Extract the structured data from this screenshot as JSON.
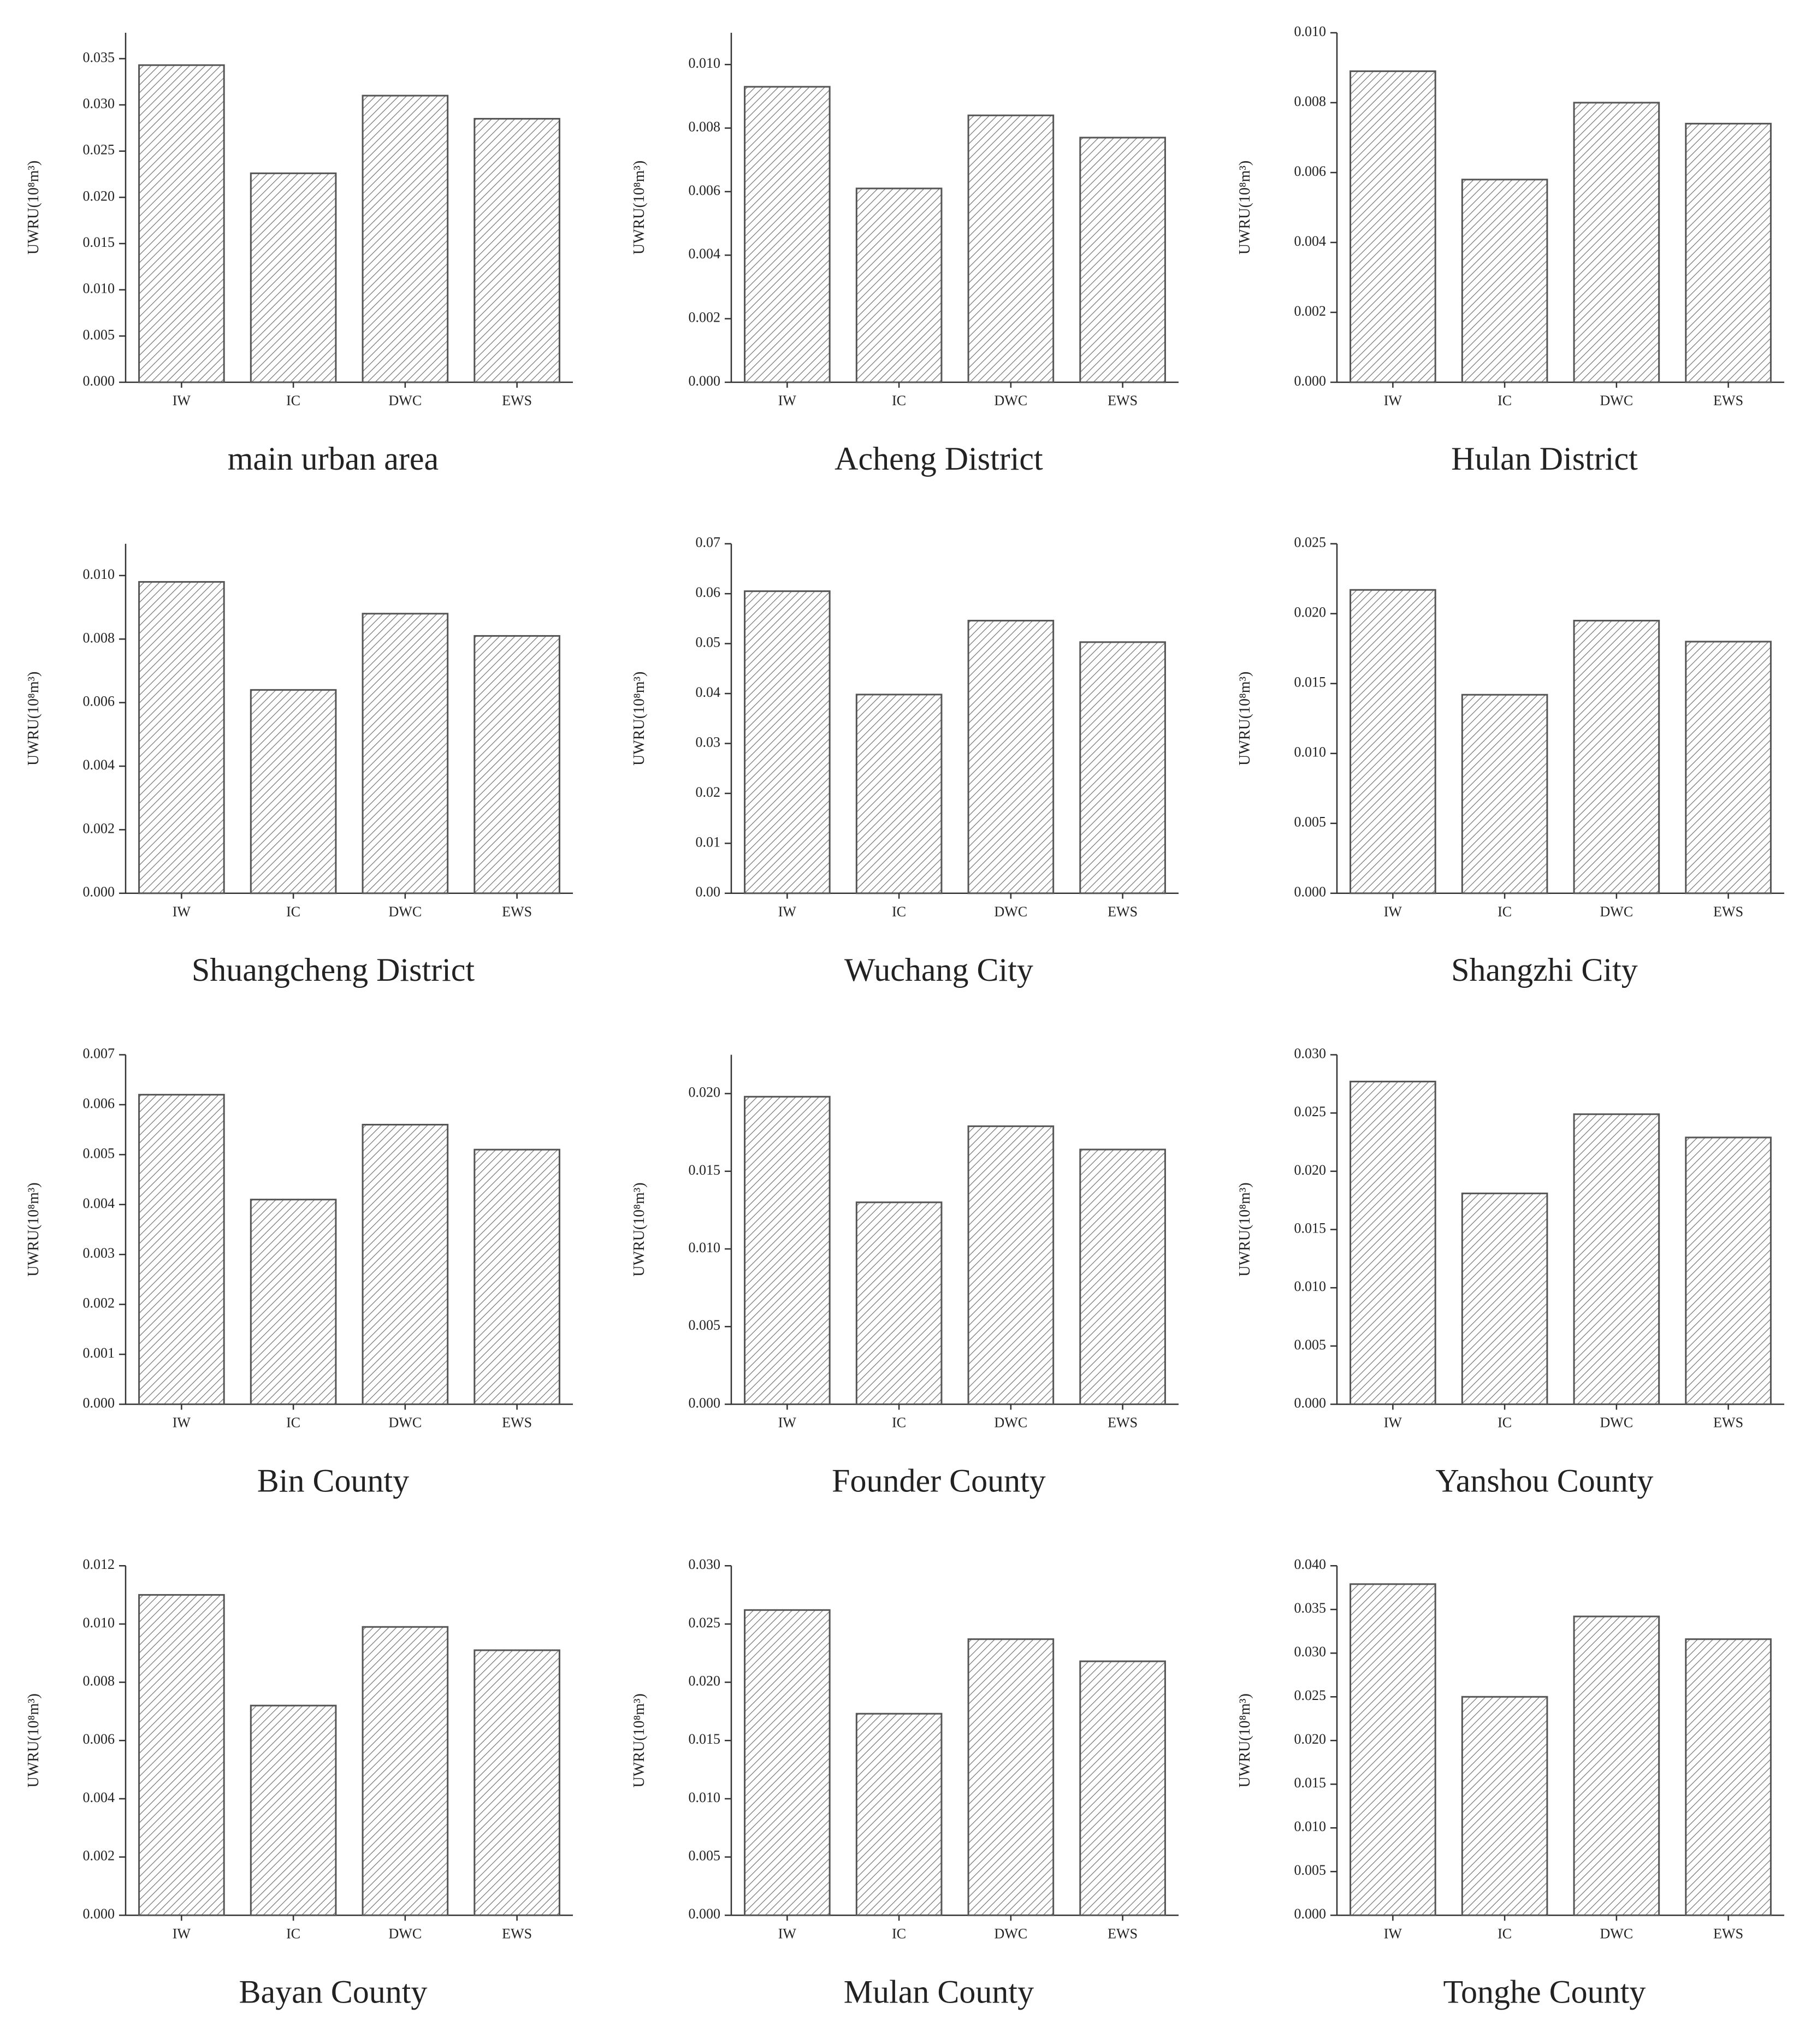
{
  "chart_data": [
    {
      "type": "bar",
      "title": "main urban area",
      "ylabel": "UWRU(10⁸m³)",
      "categories": [
        "IW",
        "IC",
        "DWC",
        "EWS"
      ],
      "values": [
        0.0343,
        0.0226,
        0.031,
        0.0285
      ],
      "color": "#555555",
      "ylim": [
        0,
        0.0378
      ],
      "yticks": [
        {
          "value": 0,
          "label": "0.000"
        },
        0.005,
        {
          "value": 0.01,
          "label": "0.010"
        },
        0.015,
        {
          "value": 0.02,
          "label": "0.020"
        },
        0.025,
        {
          "value": 0.03,
          "label": "0.030"
        },
        0.035
      ]
    },
    {
      "type": "bar",
      "title": "Acheng District",
      "ylabel": "UWRU(10⁸m³)",
      "categories": [
        "IW",
        "IC",
        "DWC",
        "EWS"
      ],
      "values": [
        0.0093,
        0.0061,
        0.0084,
        0.0077
      ],
      "color": "#555555",
      "ylim": [
        0,
        0.011
      ],
      "yticks": [
        {
          "value": 0,
          "label": "0.000"
        },
        0.002,
        0.004,
        0.006,
        0.008,
        {
          "value": 0.01,
          "label": "0.010"
        }
      ]
    },
    {
      "type": "bar",
      "title": "Hulan District",
      "ylabel": "UWRU(10⁸m³)",
      "categories": [
        "IW",
        "IC",
        "DWC",
        "EWS"
      ],
      "values": [
        0.0089,
        0.0058,
        0.008,
        0.0074
      ],
      "color": "#555555",
      "ylim": [
        0,
        0.01
      ],
      "yticks": [
        {
          "value": 0,
          "label": "0.000"
        },
        0.002,
        0.004,
        0.006,
        0.008,
        {
          "value": 0.01,
          "label": "0.010"
        }
      ]
    },
    {
      "type": "bar",
      "title": "Shuangcheng District",
      "ylabel": "UWRU(10⁸m³)",
      "categories": [
        "IW",
        "IC",
        "DWC",
        "EWS"
      ],
      "values": [
        0.0098,
        0.0064,
        0.0088,
        0.0081
      ],
      "color": "#555555",
      "ylim": [
        0,
        0.011
      ],
      "yticks": [
        {
          "value": 0,
          "label": "0.000"
        },
        0.002,
        0.004,
        0.006,
        0.008,
        {
          "value": 0.01,
          "label": "0.010"
        }
      ]
    },
    {
      "type": "bar",
      "title": "Wuchang City",
      "ylabel": "UWRU(10⁸m³)",
      "categories": [
        "IW",
        "IC",
        "DWC",
        "EWS"
      ],
      "values": [
        0.0605,
        0.0398,
        0.0546,
        0.0503
      ],
      "color": "#555555",
      "ylim": [
        0,
        0.07
      ],
      "yticks": [
        {
          "value": 0,
          "label": "0.00"
        },
        0.01,
        0.02,
        0.03,
        0.04,
        0.05,
        0.06,
        0.07
      ]
    },
    {
      "type": "bar",
      "title": "Shangzhi City",
      "ylabel": "UWRU(10⁸m³)",
      "categories": [
        "IW",
        "IC",
        "DWC",
        "EWS"
      ],
      "values": [
        0.0217,
        0.0142,
        0.0195,
        0.018
      ],
      "color": "#555555",
      "ylim": [
        0,
        0.025
      ],
      "yticks": [
        {
          "value": 0,
          "label": "0.000"
        },
        0.005,
        {
          "value": 0.01,
          "label": "0.010"
        },
        0.015,
        {
          "value": 0.02,
          "label": "0.020"
        },
        0.025
      ]
    },
    {
      "type": "bar",
      "title": "Bin County",
      "ylabel": "UWRU(10⁸m³)",
      "categories": [
        "IW",
        "IC",
        "DWC",
        "EWS"
      ],
      "values": [
        0.0062,
        0.0041,
        0.0056,
        0.0051
      ],
      "color": "#555555",
      "ylim": [
        0,
        0.007
      ],
      "yticks": [
        {
          "value": 0,
          "label": "0.000"
        },
        0.001,
        0.002,
        0.003,
        0.004,
        0.005,
        0.006,
        0.007
      ]
    },
    {
      "type": "bar",
      "title": "Founder County",
      "ylabel": "UWRU(10⁸m³)",
      "categories": [
        "IW",
        "IC",
        "DWC",
        "EWS"
      ],
      "values": [
        0.0198,
        0.013,
        0.0179,
        0.0164
      ],
      "color": "#555555",
      "ylim": [
        0,
        0.0225
      ],
      "yticks": [
        {
          "value": 0,
          "label": "0.000"
        },
        0.005,
        {
          "value": 0.01,
          "label": "0.010"
        },
        0.015,
        {
          "value": 0.02,
          "label": "0.020"
        }
      ]
    },
    {
      "type": "bar",
      "title": "Yanshou County",
      "ylabel": "UWRU(10⁸m³)",
      "categories": [
        "IW",
        "IC",
        "DWC",
        "EWS"
      ],
      "values": [
        0.0277,
        0.0181,
        0.0249,
        0.0229
      ],
      "color": "#555555",
      "ylim": [
        0,
        0.03
      ],
      "yticks": [
        {
          "value": 0,
          "label": "0.000"
        },
        0.005,
        {
          "value": 0.01,
          "label": "0.010"
        },
        0.015,
        {
          "value": 0.02,
          "label": "0.020"
        },
        0.025,
        {
          "value": 0.03,
          "label": "0.030"
        }
      ]
    },
    {
      "type": "bar",
      "title": "Bayan County",
      "ylabel": "UWRU(10⁸m³)",
      "categories": [
        "IW",
        "IC",
        "DWC",
        "EWS"
      ],
      "values": [
        0.011,
        0.0072,
        0.0099,
        0.0091
      ],
      "color": "#555555",
      "ylim": [
        0,
        0.012
      ],
      "yticks": [
        {
          "value": 0,
          "label": "0.000"
        },
        0.002,
        0.004,
        0.006,
        0.008,
        {
          "value": 0.01,
          "label": "0.010"
        },
        0.012
      ]
    },
    {
      "type": "bar",
      "title": "Mulan County",
      "ylabel": "UWRU(10⁸m³)",
      "categories": [
        "IW",
        "IC",
        "DWC",
        "EWS"
      ],
      "values": [
        0.0262,
        0.0173,
        0.0237,
        0.0218
      ],
      "color": "#555555",
      "ylim": [
        0,
        0.03
      ],
      "yticks": [
        {
          "value": 0,
          "label": "0.000"
        },
        0.005,
        {
          "value": 0.01,
          "label": "0.010"
        },
        0.015,
        {
          "value": 0.02,
          "label": "0.020"
        },
        0.025,
        {
          "value": 0.03,
          "label": "0.030"
        }
      ]
    },
    {
      "type": "bar",
      "title": "Tonghe County",
      "ylabel": "UWRU(10⁸m³)",
      "categories": [
        "IW",
        "IC",
        "DWC",
        "EWS"
      ],
      "values": [
        0.0379,
        0.025,
        0.0342,
        0.0316
      ],
      "color": "#555555",
      "ylim": [
        0,
        0.04
      ],
      "yticks": [
        {
          "value": 0,
          "label": "0.000"
        },
        0.005,
        {
          "value": 0.01,
          "label": "0.010"
        },
        0.015,
        {
          "value": 0.02,
          "label": "0.020"
        },
        0.025,
        {
          "value": 0.03,
          "label": "0.030"
        },
        0.035,
        {
          "value": 0.04,
          "label": "0.040"
        }
      ]
    }
  ]
}
